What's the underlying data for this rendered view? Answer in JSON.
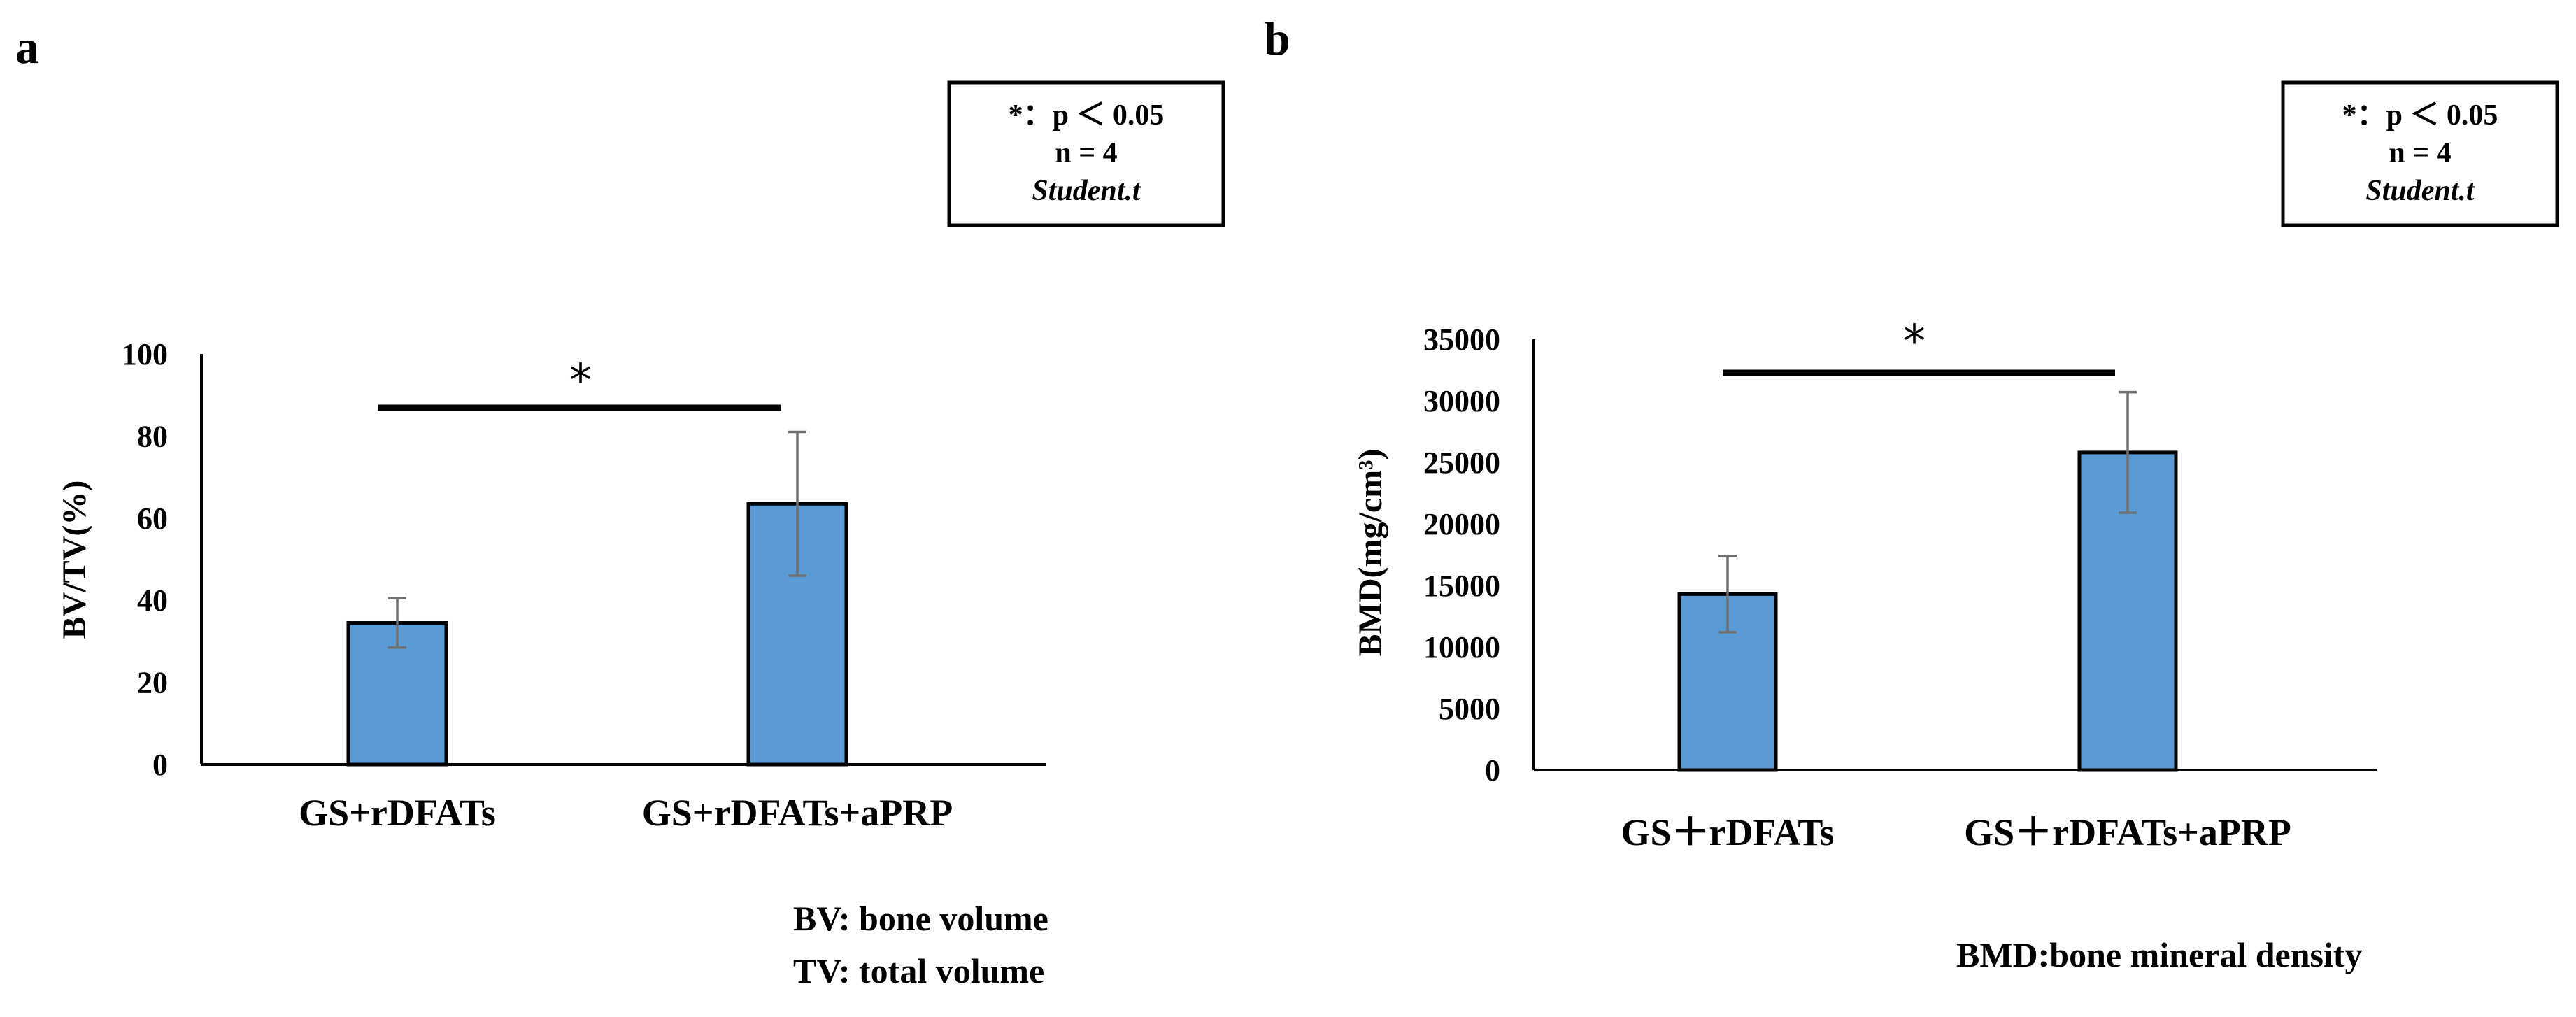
{
  "colors": {
    "bar_fill": "#5B9BD5",
    "bar_edge": "#000000",
    "error_bar": "#707070"
  },
  "chart_data": [
    {
      "type": "bar",
      "panel_label": "a",
      "categories": [
        "GS+rDFATs",
        "GS+rDFATs+aPRP"
      ],
      "values": [
        34.5,
        63.5
      ],
      "errors": [
        6.0,
        17.5
      ],
      "ylabel": "BV/TV(%)",
      "xlabel": "",
      "ylim": [
        0,
        100
      ],
      "yticks": [
        "0",
        "20",
        "40",
        "60",
        "80",
        "100"
      ],
      "significance": {
        "between": [
          0,
          1
        ],
        "symbol": "*"
      },
      "legend_box": [
        "*：p ＜ 0.05",
        "n = 4",
        "Student.t"
      ],
      "footnotes": [
        "BV: bone volume",
        "TV: total volume"
      ]
    },
    {
      "type": "bar",
      "panel_label": "b",
      "categories": [
        "GS＋rDFATs",
        "GS＋rDFATs+aPRP"
      ],
      "values": [
        14300,
        25800
      ],
      "errors": [
        3100,
        4900
      ],
      "ylabel": "BMD(mg/cm³)",
      "xlabel": "",
      "ylim": [
        0,
        35000
      ],
      "yticks": [
        "0",
        "5000",
        "10000",
        "15000",
        "20000",
        "25000",
        "30000",
        "35000"
      ],
      "significance": {
        "between": [
          0,
          1
        ],
        "symbol": "*"
      },
      "legend_box": [
        "*：p ＜ 0.05",
        "n = 4",
        "Student.t"
      ],
      "footnotes": [
        "BMD:bone mineral density"
      ]
    }
  ]
}
